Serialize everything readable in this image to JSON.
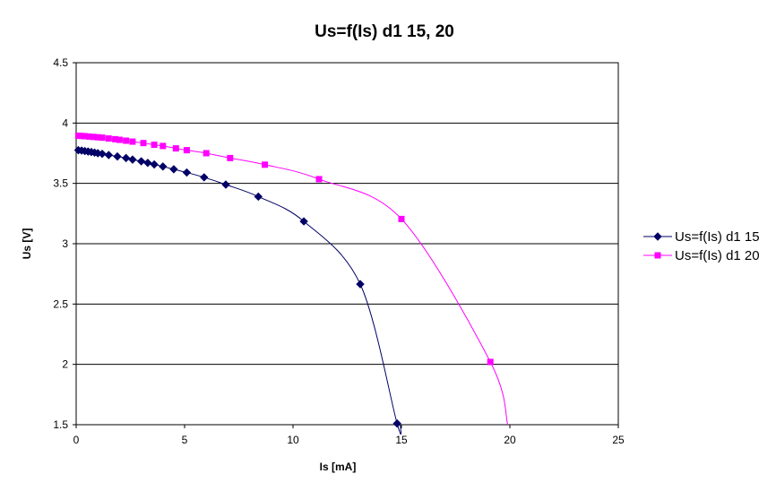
{
  "chart_data": {
    "type": "scatter",
    "title": "Us=f(Is) d1 15, 20",
    "xlabel": "Is [mA]",
    "ylabel": "Us [V]",
    "xlim": [
      0,
      25
    ],
    "ylim": [
      1.5,
      4.5
    ],
    "xticks": [
      0,
      5,
      10,
      15,
      20,
      25
    ],
    "yticks": [
      1.5,
      2,
      2.5,
      3,
      3.5,
      4,
      4.5
    ],
    "grid": "horizontal",
    "legend_position": "right",
    "series": [
      {
        "name": "Us=f(Is) d1 15",
        "color": "#000066",
        "marker": "diamond",
        "x": [
          0.1,
          0.25,
          0.4,
          0.55,
          0.7,
          0.85,
          1.0,
          1.2,
          1.5,
          1.9,
          2.3,
          2.6,
          3.0,
          3.3,
          3.6,
          4.0,
          4.5,
          5.1,
          5.9,
          6.9,
          8.4,
          10.5,
          13.1,
          14.8
        ],
        "y": [
          3.775,
          3.772,
          3.768,
          3.764,
          3.76,
          3.755,
          3.75,
          3.745,
          3.735,
          3.723,
          3.71,
          3.697,
          3.683,
          3.67,
          3.657,
          3.64,
          3.617,
          3.59,
          3.55,
          3.49,
          3.39,
          3.185,
          2.665,
          1.51
        ]
      },
      {
        "name": "Us=f(Is) d1 20",
        "color": "#FF00FF",
        "marker": "square",
        "x": [
          0.1,
          0.25,
          0.4,
          0.6,
          0.8,
          1.0,
          1.2,
          1.5,
          1.8,
          2.0,
          2.3,
          2.6,
          3.1,
          3.6,
          4.0,
          4.6,
          5.1,
          6.0,
          7.1,
          8.7,
          11.2,
          15.0,
          19.1
        ],
        "y": [
          3.895,
          3.893,
          3.891,
          3.888,
          3.885,
          3.882,
          3.879,
          3.872,
          3.866,
          3.861,
          3.854,
          3.846,
          3.834,
          3.82,
          3.81,
          3.79,
          3.775,
          3.75,
          3.71,
          3.655,
          3.535,
          3.205,
          2.02
        ]
      }
    ],
    "curve_extension": {
      "Us=f(Is) d1 15": {
        "x": 14.95,
        "y": 1.5
      },
      "Us=f(Is) d1 20": {
        "x": 19.9,
        "y": 1.5
      }
    }
  }
}
